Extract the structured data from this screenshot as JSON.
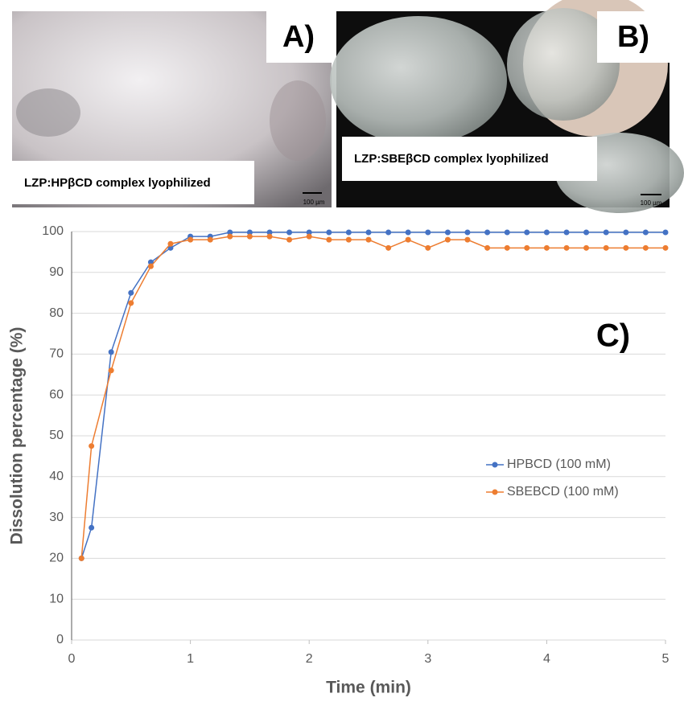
{
  "panels": [
    {
      "label": "A)",
      "caption": "LZP:HPβCD complex lyophilized",
      "scale": "100 µm"
    },
    {
      "label": "B)",
      "caption": "LZP:SBEβCD complex lyophilized",
      "scale": "100 µm"
    }
  ],
  "chart_data": {
    "type": "line",
    "label": "C)",
    "xlabel": "Time (min)",
    "ylabel": "Dissolution percentage (%)",
    "x": [
      0.083,
      0.167,
      0.333,
      0.5,
      0.667,
      0.833,
      1,
      1.167,
      1.333,
      1.5,
      1.667,
      1.833,
      2,
      2.167,
      2.333,
      2.5,
      2.667,
      2.833,
      3,
      3.167,
      3.333,
      3.5,
      3.667,
      3.833,
      4,
      4.167,
      4.333,
      4.5,
      4.667,
      4.833,
      5
    ],
    "series": [
      {
        "name": "HPBCD (100 mM)",
        "color": "#4472c4",
        "values": [
          20,
          27.5,
          70.5,
          85,
          92.5,
          96,
          98.8,
          98.8,
          99.8,
          99.8,
          99.8,
          99.8,
          99.8,
          99.8,
          99.8,
          99.8,
          99.8,
          99.8,
          99.8,
          99.8,
          99.8,
          99.8,
          99.8,
          99.8,
          99.8,
          99.8,
          99.8,
          99.8,
          99.8,
          99.8,
          99.8
        ]
      },
      {
        "name": "SBEBCD (100 mM)",
        "color": "#ed7d31",
        "values": [
          20,
          47.5,
          66,
          82.5,
          91.5,
          97,
          98,
          98,
          98.8,
          98.8,
          98.8,
          98,
          98.8,
          98,
          98,
          98,
          96,
          98,
          96,
          98,
          98,
          96,
          96,
          96,
          96,
          96,
          96,
          96,
          96,
          96,
          96
        ]
      }
    ],
    "xlim": [
      0,
      5
    ],
    "xticks": [
      0,
      1,
      2,
      3,
      4,
      5
    ],
    "ylim": [
      0,
      100
    ],
    "yticks": [
      0,
      10,
      20,
      30,
      40,
      50,
      60,
      70,
      80,
      90,
      100
    ],
    "grid": true
  }
}
